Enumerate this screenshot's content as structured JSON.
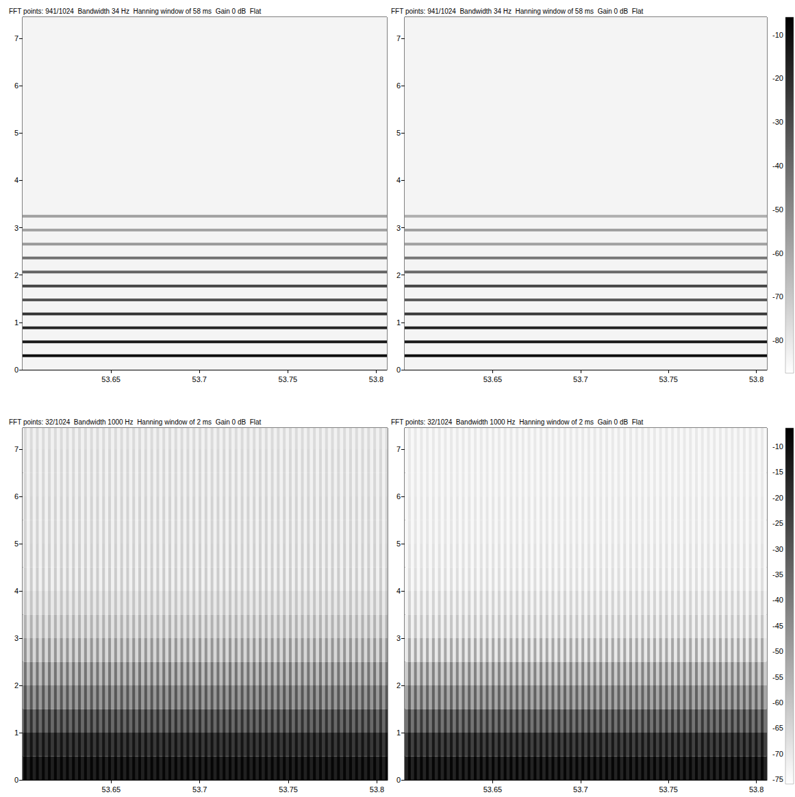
{
  "chart_data": [
    {
      "type": "spectrogram",
      "title": "FFT points: 941/1024  Bandwidth 34 Hz  Hanning window of 58 ms  Gain 0 dB  Flat",
      "xlim": [
        53.6,
        53.806
      ],
      "xticks": [
        53.65,
        53.7,
        53.75,
        53.8
      ],
      "ylim": [
        0,
        7.45
      ],
      "yticks": [
        0,
        1,
        2,
        3,
        4,
        5,
        6,
        7
      ],
      "noise_level": -84,
      "harmonics": [
        {
          "freq": 0.295,
          "level": -10
        },
        {
          "freq": 0.59,
          "level": -14
        },
        {
          "freq": 0.885,
          "level": -18
        },
        {
          "freq": 1.18,
          "level": -22
        },
        {
          "freq": 1.475,
          "level": -33
        },
        {
          "freq": 1.77,
          "level": -28
        },
        {
          "freq": 2.065,
          "level": -38
        },
        {
          "freq": 2.36,
          "level": -42
        },
        {
          "freq": 2.655,
          "level": -55
        },
        {
          "freq": 2.95,
          "level": -58
        },
        {
          "freq": 3.245,
          "level": -57
        }
      ]
    },
    {
      "type": "spectrogram",
      "title": "FFT points: 941/1024  Bandwidth 34 Hz  Hanning window of 58 ms  Gain 0 dB  Flat",
      "xlim": [
        53.6,
        53.806
      ],
      "xticks": [
        53.65,
        53.7,
        53.75,
        53.8
      ],
      "ylim": [
        0,
        7.45
      ],
      "yticks": [
        0,
        1,
        2,
        3,
        4,
        5,
        6,
        7
      ],
      "noise_level": -84,
      "harmonics": [
        {
          "freq": 0.295,
          "level": -10
        },
        {
          "freq": 0.59,
          "level": -14
        },
        {
          "freq": 0.885,
          "level": -17
        },
        {
          "freq": 1.18,
          "level": -24
        },
        {
          "freq": 1.475,
          "level": -35
        },
        {
          "freq": 1.77,
          "level": -28
        },
        {
          "freq": 2.065,
          "level": -40
        },
        {
          "freq": 2.36,
          "level": -44
        },
        {
          "freq": 2.655,
          "level": -57
        },
        {
          "freq": 2.95,
          "level": -57
        },
        {
          "freq": 3.245,
          "level": -62
        }
      ],
      "colorbar": {
        "range": [
          -87.5,
          -6
        ],
        "ticks": [
          -80,
          -70,
          -60,
          -50,
          -40,
          -30,
          -20,
          -10
        ]
      }
    },
    {
      "type": "spectrogram",
      "title": "FFT points: 32/1024  Bandwidth 1000 Hz  Hanning window of 2 ms  Gain 0 dB  Flat",
      "xlim": [
        53.6,
        53.806
      ],
      "xticks": [
        53.65,
        53.7,
        53.75,
        53.8
      ],
      "ylim": [
        0,
        7.45
      ],
      "yticks": [
        0,
        1,
        2,
        3,
        4,
        5,
        6,
        7
      ],
      "freq_bands": [
        0,
        0.5,
        1,
        1.5,
        2,
        2.5,
        3,
        3.5,
        4,
        4.5,
        5,
        5.5,
        6,
        6.5,
        7,
        7.45
      ],
      "pulse_levels": [
        -8,
        -12,
        -20,
        -30,
        -38,
        -47,
        -55,
        -60,
        -62,
        -63,
        -64,
        -64,
        -65,
        -65,
        -66
      ],
      "gap_levels": [
        -15,
        -22,
        -35,
        -48,
        -58,
        -65,
        -68,
        -70,
        -72,
        -72,
        -72,
        -72,
        -72,
        -72,
        -72
      ],
      "pulse_times": [
        53.6015,
        53.6049,
        53.6083,
        53.6117,
        53.6151,
        53.6185,
        53.6219,
        53.6253,
        53.6287,
        53.6321,
        53.6355,
        53.6389,
        53.6423,
        53.6457,
        53.6491,
        53.6525,
        53.6559,
        53.6593,
        53.6627,
        53.6661,
        53.6695,
        53.6729,
        53.6763,
        53.6797,
        53.6831,
        53.6865,
        53.6899,
        53.6933,
        53.6967,
        53.7001,
        53.7035,
        53.7069,
        53.7103,
        53.7137,
        53.7171,
        53.7205,
        53.7239,
        53.7273,
        53.7307,
        53.7341,
        53.7375,
        53.7409,
        53.7443,
        53.7477,
        53.7511,
        53.7545,
        53.7579,
        53.7613,
        53.7647,
        53.7681,
        53.7715,
        53.7749,
        53.7783,
        53.7817,
        53.7851,
        53.7885,
        53.7919,
        53.7953,
        53.7987,
        53.8021,
        53.8055
      ]
    },
    {
      "type": "spectrogram",
      "title": "FFT points: 32/1024  Bandwidth 1000 Hz  Hanning window of 2 ms  Gain 0 dB  Flat",
      "xlim": [
        53.6,
        53.806
      ],
      "xticks": [
        53.65,
        53.7,
        53.75,
        53.8
      ],
      "ylim": [
        0,
        7.45
      ],
      "yticks": [
        0,
        1,
        2,
        3,
        4,
        5,
        6,
        7
      ],
      "freq_bands": [
        0,
        0.5,
        1,
        1.5,
        2,
        2.5,
        3,
        3.5,
        4,
        4.5,
        5,
        5.5,
        6,
        6.5,
        7,
        7.45
      ],
      "pulse_levels": [
        -8,
        -13,
        -22,
        -33,
        -42,
        -52,
        -60,
        -64,
        -67,
        -68,
        -69,
        -69,
        -70,
        -70,
        -70
      ],
      "gap_levels": [
        -16,
        -24,
        -38,
        -52,
        -62,
        -70,
        -72,
        -73,
        -74,
        -74,
        -74,
        -74,
        -74,
        -74,
        -74
      ],
      "pulse_times": [
        53.6027,
        53.6061,
        53.6095,
        53.6129,
        53.6163,
        53.6197,
        53.6231,
        53.6265,
        53.6299,
        53.6333,
        53.6367,
        53.6401,
        53.6435,
        53.6469,
        53.6503,
        53.6537,
        53.6571,
        53.6605,
        53.6639,
        53.6673,
        53.6707,
        53.6741,
        53.6775,
        53.6809,
        53.6843,
        53.6877,
        53.6911,
        53.6945,
        53.6979,
        53.7013,
        53.7047,
        53.7081,
        53.7115,
        53.7149,
        53.7183,
        53.7217,
        53.7251,
        53.7285,
        53.7319,
        53.7353,
        53.7387,
        53.7421,
        53.7455,
        53.7489,
        53.7523,
        53.7557,
        53.7591,
        53.7625,
        53.7659,
        53.7693,
        53.7727,
        53.7761,
        53.7795,
        53.7829,
        53.7863,
        53.7897,
        53.7931,
        53.7965,
        53.7999,
        53.8033
      ],
      "colorbar": {
        "range": [
          -75.9,
          -6.4
        ],
        "ticks": [
          -75,
          -70,
          -65,
          -60,
          -55,
          -50,
          -45,
          -40,
          -35,
          -30,
          -25,
          -20,
          -15,
          -10
        ]
      }
    }
  ]
}
